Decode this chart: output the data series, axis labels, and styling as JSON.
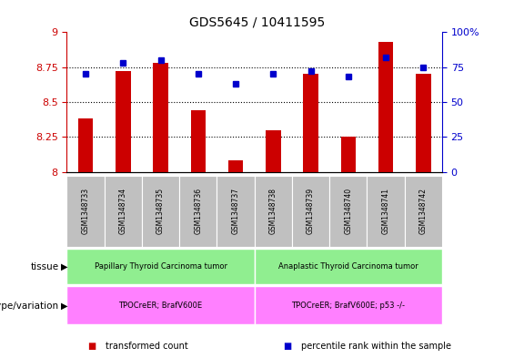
{
  "title": "GDS5645 / 10411595",
  "samples": [
    "GSM1348733",
    "GSM1348734",
    "GSM1348735",
    "GSM1348736",
    "GSM1348737",
    "GSM1348738",
    "GSM1348739",
    "GSM1348740",
    "GSM1348741",
    "GSM1348742"
  ],
  "transformed_count": [
    8.38,
    8.72,
    8.78,
    8.44,
    8.08,
    8.3,
    8.7,
    8.25,
    8.93,
    8.7
  ],
  "percentile_rank": [
    70,
    78,
    80,
    70,
    63,
    70,
    72,
    68,
    82,
    75
  ],
  "ylim_left": [
    8.0,
    9.0
  ],
  "ylim_right": [
    0,
    100
  ],
  "yticks_left": [
    8.0,
    8.25,
    8.5,
    8.75,
    9.0
  ],
  "yticks_right": [
    0,
    25,
    50,
    75,
    100
  ],
  "ytick_labels_left": [
    "8",
    "8.25",
    "8.5",
    "8.75",
    "9"
  ],
  "ytick_labels_right": [
    "0",
    "25",
    "50",
    "75",
    "100%"
  ],
  "bar_color": "#cc0000",
  "dot_color": "#0000cc",
  "tissue_groups": [
    {
      "label": "Papillary Thyroid Carcinoma tumor",
      "start": 0,
      "end": 4,
      "color": "#90ee90"
    },
    {
      "label": "Anaplastic Thyroid Carcinoma tumor",
      "start": 5,
      "end": 9,
      "color": "#90ee90"
    }
  ],
  "genotype_groups": [
    {
      "label": "TPOCreER; BrafV600E",
      "start": 0,
      "end": 4,
      "color": "#ff80ff"
    },
    {
      "label": "TPOCreER; BrafV600E; p53 -/-",
      "start": 5,
      "end": 9,
      "color": "#ff80ff"
    }
  ],
  "tissue_label": "tissue",
  "genotype_label": "genotype/variation",
  "legend_items": [
    {
      "color": "#cc0000",
      "label": "transformed count"
    },
    {
      "color": "#0000cc",
      "label": "percentile rank within the sample"
    }
  ],
  "xticklabel_bg_color": "#c0c0c0",
  "bar_width": 0.4
}
